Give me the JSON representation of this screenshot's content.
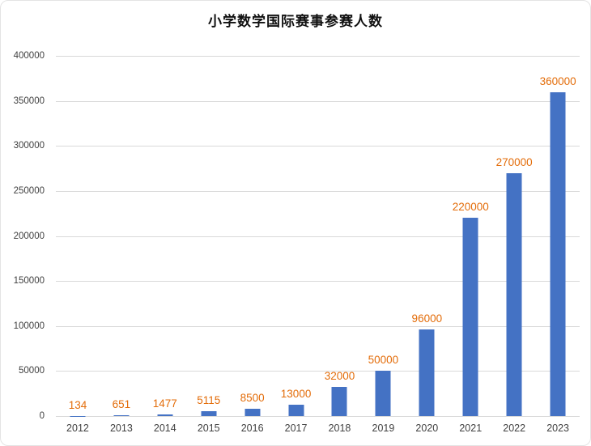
{
  "chart_data": {
    "type": "bar",
    "title": "小学数学国际赛事参赛人数",
    "categories": [
      "2012",
      "2013",
      "2014",
      "2015",
      "2016",
      "2017",
      "2018",
      "2019",
      "2020",
      "2021",
      "2022",
      "2023"
    ],
    "values": [
      134,
      651,
      1477,
      5115,
      8500,
      13000,
      32000,
      50000,
      96000,
      220000,
      270000,
      360000
    ],
    "value_labels": [
      "134",
      "651",
      "1477",
      "5115",
      "8500",
      "13000",
      "32000",
      "50000",
      "96000",
      "220000",
      "270000",
      "360000"
    ],
    "xlabel": "",
    "ylabel": "",
    "ylim": [
      0,
      400000
    ],
    "y_tick_step": 50000,
    "y_ticks": [
      "0",
      "50000",
      "100000",
      "150000",
      "200000",
      "250000",
      "300000",
      "350000",
      "400000"
    ],
    "grid": true,
    "legend": "none",
    "colors": {
      "bar": "#4472C4",
      "data_label": "#E36C09",
      "gridline": "#D9D9D9",
      "axis_text": "#404040",
      "title_text": "#111111",
      "background": "#FFFFFF"
    }
  }
}
